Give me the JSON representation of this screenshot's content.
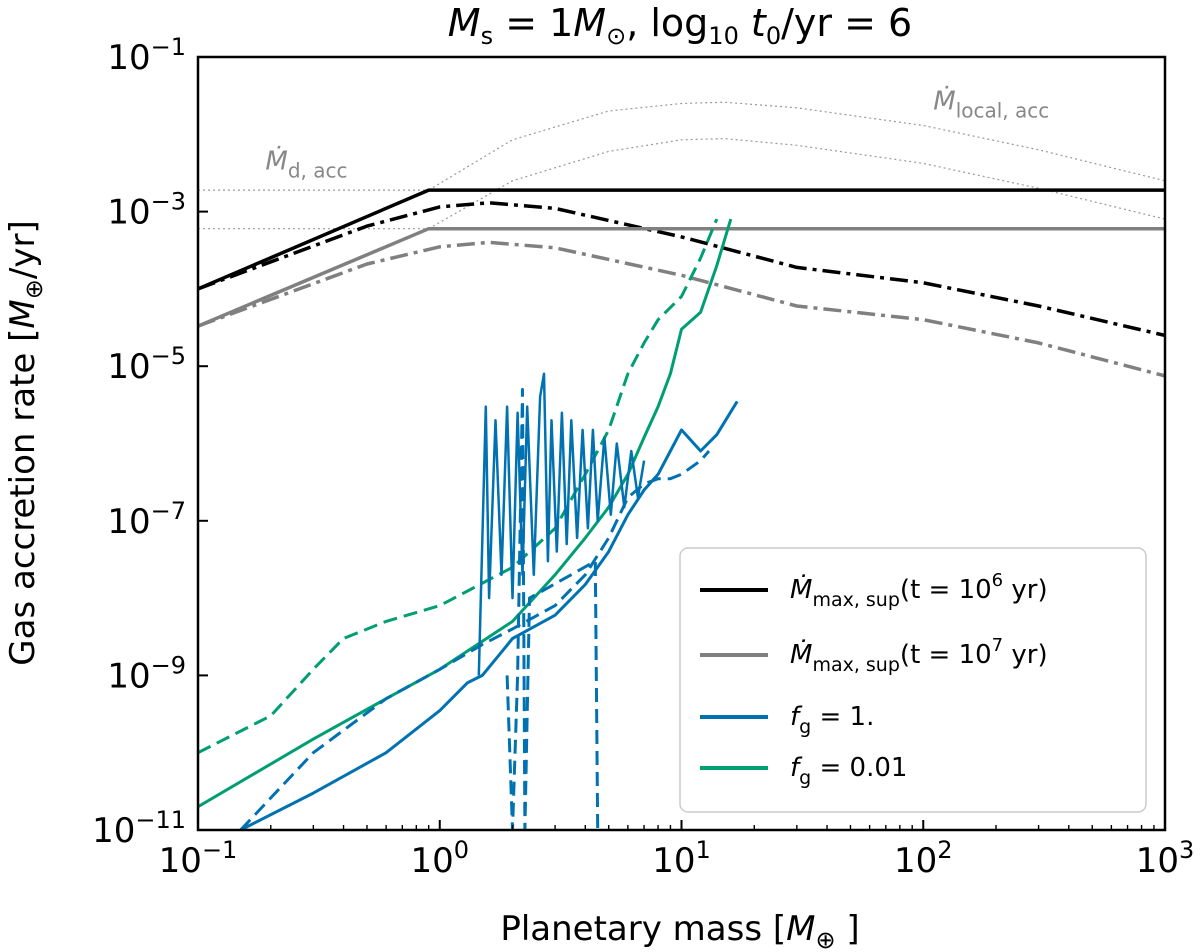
{
  "chart_data": {
    "type": "line",
    "title": "M_s = 1M_⊙, log₁₀ t₀/yr = 6",
    "title_parts": {
      "a": "M",
      "a_sub": "s",
      "b": " = 1",
      "c": "M",
      "c_sub": "⊙",
      "d": ", log",
      "d_sub": "10",
      "e": " t",
      "e_sub": "0",
      "f": "/yr = 6"
    },
    "xlabel": "Planetary mass [M⊕]",
    "xlabel_parts": {
      "pre": "Planetary mass [",
      "m": "M",
      "m_sub": "⊕",
      "post": " ]"
    },
    "ylabel": "Gas accretion rate [M⊕/yr]",
    "ylabel_parts": {
      "pre": "Gas accretion rate [",
      "m": "M",
      "m_sub": "⊕",
      "post": "/yr]"
    },
    "xscale": "log",
    "yscale": "log",
    "xlim": [
      0.1,
      1000
    ],
    "ylim": [
      1e-11,
      0.1
    ],
    "x_ticks": [
      {
        "value": 0.1,
        "base": "10",
        "exp": "−1"
      },
      {
        "value": 1,
        "base": "10",
        "exp": "0"
      },
      {
        "value": 10,
        "base": "10",
        "exp": "1"
      },
      {
        "value": 100,
        "base": "10",
        "exp": "2"
      },
      {
        "value": 1000,
        "base": "10",
        "exp": "3"
      }
    ],
    "y_ticks": [
      {
        "value": 1e-11,
        "base": "10",
        "exp": "−11"
      },
      {
        "value": 1e-09,
        "base": "10",
        "exp": "−9"
      },
      {
        "value": 1e-07,
        "base": "10",
        "exp": "−7"
      },
      {
        "value": 1e-05,
        "base": "10",
        "exp": "−5"
      },
      {
        "value": 0.001,
        "base": "10",
        "exp": "−3"
      },
      {
        "value": 0.1,
        "base": "10",
        "exp": "−1"
      }
    ],
    "grid": false,
    "legend_position": "bottom-right",
    "legend": [
      {
        "main": "Ṁ",
        "sub": "max, sup",
        "rest": "(t = 10",
        "sup": "6",
        "tail": " yr)",
        "color": "#000000",
        "style": "solid"
      },
      {
        "main": "Ṁ",
        "sub": "max, sup",
        "rest": "(t = 10",
        "sup": "7",
        "tail": " yr)",
        "color": "#808080",
        "style": "solid"
      },
      {
        "main": "f",
        "sub": "g",
        "rest": " = 1.",
        "sup": "",
        "tail": "",
        "color": "#0072B2",
        "style": "solid"
      },
      {
        "main": "f",
        "sub": "g",
        "rest": " = 0.01",
        "sup": "",
        "tail": "",
        "color": "#009E73",
        "style": "solid"
      }
    ],
    "annotations": [
      {
        "main": "Ṁ",
        "sub": "d, acc",
        "x": 0.19,
        "y": 0.0035
      },
      {
        "main": "Ṁ",
        "sub": "local, acc",
        "x": 110,
        "y": 0.021
      }
    ],
    "colors": {
      "black": "#000000",
      "gray": "#808080",
      "blue": "#0072B2",
      "green": "#009E73",
      "dotted": "#999999"
    },
    "series": [
      {
        "id": "mdot-d-acc-1e6",
        "color": "#999999",
        "style": "dotted",
        "width": 1.2,
        "points": [
          [
            0.1,
            0.0019
          ],
          [
            1000,
            0.0019
          ]
        ]
      },
      {
        "id": "mdot-d-acc-1e7",
        "color": "#999999",
        "style": "dotted",
        "width": 1.2,
        "points": [
          [
            0.1,
            0.0006
          ],
          [
            1000,
            0.0006
          ]
        ]
      },
      {
        "id": "mdot-local-acc-1e6",
        "color": "#999999",
        "style": "dotted",
        "width": 1.2,
        "points": [
          [
            0.9,
            0.0019
          ],
          [
            2,
            0.0085
          ],
          [
            5,
            0.02
          ],
          [
            10,
            0.025
          ],
          [
            15,
            0.026
          ],
          [
            30,
            0.022
          ],
          [
            100,
            0.013
          ],
          [
            300,
            0.0063
          ],
          [
            1000,
            0.0025
          ]
        ]
      },
      {
        "id": "mdot-local-acc-1e7",
        "color": "#999999",
        "style": "dotted",
        "width": 1.2,
        "points": [
          [
            0.9,
            0.0006
          ],
          [
            2,
            0.0025
          ],
          [
            5,
            0.006
          ],
          [
            10,
            0.0085
          ],
          [
            15,
            0.0088
          ],
          [
            30,
            0.0072
          ],
          [
            100,
            0.0042
          ],
          [
            300,
            0.002
          ],
          [
            1000,
            0.0008
          ]
        ]
      },
      {
        "id": "mdot-max-sup-1e6",
        "color": "#000000",
        "style": "solid",
        "width": 3.5,
        "points": [
          [
            0.1,
            0.0001
          ],
          [
            0.9,
            0.0019
          ],
          [
            1000,
            0.0019
          ]
        ]
      },
      {
        "id": "mdot-max-sup-1e6-dashdot",
        "color": "#000000",
        "style": "dashdot",
        "width": 3.5,
        "points": [
          [
            0.1,
            0.0001
          ],
          [
            0.5,
            0.00065
          ],
          [
            1,
            0.00115
          ],
          [
            1.6,
            0.0013
          ],
          [
            3,
            0.0011
          ],
          [
            10,
            0.00047
          ],
          [
            30,
            0.00019
          ],
          [
            100,
            0.00012
          ],
          [
            300,
            6e-05
          ],
          [
            1000,
            2.5e-05
          ]
        ]
      },
      {
        "id": "mdot-max-sup-1e7",
        "color": "#808080",
        "style": "solid",
        "width": 3.5,
        "points": [
          [
            0.1,
            3.3e-05
          ],
          [
            0.9,
            0.0006
          ],
          [
            1000,
            0.0006
          ]
        ]
      },
      {
        "id": "mdot-max-sup-1e7-dashdot",
        "color": "#808080",
        "style": "dashdot",
        "width": 3.5,
        "points": [
          [
            0.1,
            3.3e-05
          ],
          [
            0.5,
            0.00021
          ],
          [
            1,
            0.00035
          ],
          [
            1.6,
            0.0004
          ],
          [
            3,
            0.00034
          ],
          [
            10,
            0.00015
          ],
          [
            30,
            6e-05
          ],
          [
            100,
            4e-05
          ],
          [
            300,
            2e-05
          ],
          [
            1000,
            7.5e-06
          ]
        ]
      },
      {
        "id": "fg-0.01-solid",
        "color": "#009E73",
        "style": "solid",
        "width": 3,
        "points": [
          [
            0.1,
            2e-11
          ],
          [
            0.3,
            1.5e-10
          ],
          [
            0.6,
            5e-10
          ],
          [
            1,
            1.2e-09
          ],
          [
            2,
            5e-09
          ],
          [
            3,
            2e-08
          ],
          [
            4,
            6e-08
          ],
          [
            5,
            1.5e-07
          ],
          [
            6,
            4e-07
          ],
          [
            7,
            1.2e-06
          ],
          [
            8,
            3e-06
          ],
          [
            9,
            8e-06
          ],
          [
            10,
            3e-05
          ],
          [
            12,
            5e-05
          ],
          [
            14,
            0.0002
          ],
          [
            16,
            0.0008
          ]
        ]
      },
      {
        "id": "fg-0.01-dashed",
        "color": "#009E73",
        "style": "dashed",
        "width": 3,
        "points": [
          [
            0.1,
            1e-10
          ],
          [
            0.2,
            3e-10
          ],
          [
            0.3,
            1.2e-09
          ],
          [
            0.4,
            3e-09
          ],
          [
            0.6,
            5e-09
          ],
          [
            1,
            8e-09
          ],
          [
            2,
            2.5e-08
          ],
          [
            3,
            8e-08
          ],
          [
            4,
            4e-07
          ],
          [
            5,
            1.5e-06
          ],
          [
            6,
            8e-06
          ],
          [
            7,
            2e-05
          ],
          [
            8,
            4e-05
          ],
          [
            10,
            8e-05
          ],
          [
            12,
            0.00025
          ],
          [
            14,
            0.0008
          ]
        ]
      },
      {
        "id": "fg-1-solid",
        "color": "#0072B2",
        "style": "solid",
        "width": 3,
        "points": [
          [
            0.15,
            1e-11
          ],
          [
            0.3,
            3e-11
          ],
          [
            0.6,
            1e-10
          ],
          [
            1,
            3.5e-10
          ],
          [
            1.3,
            8e-10
          ],
          [
            1.5,
            1e-09
          ],
          [
            1.8,
            2e-09
          ],
          [
            2,
            3e-09
          ],
          [
            3,
            6e-09
          ],
          [
            4,
            1.5e-08
          ],
          [
            5,
            4e-08
          ],
          [
            6,
            1.2e-07
          ],
          [
            7,
            2.5e-07
          ],
          [
            8,
            4e-07
          ],
          [
            9,
            8e-07
          ],
          [
            10,
            1.5e-06
          ],
          [
            12,
            8e-07
          ],
          [
            14,
            1.3e-06
          ],
          [
            17,
            3.5e-06
          ]
        ]
      },
      {
        "id": "fg-1-dashed",
        "color": "#0072B2",
        "style": "dashed",
        "width": 3,
        "points": [
          [
            0.15,
            1e-11
          ],
          [
            0.3,
            1e-10
          ],
          [
            0.6,
            5e-10
          ],
          [
            1,
            1.2e-09
          ],
          [
            1.5,
            2.5e-09
          ],
          [
            2,
            4e-09
          ],
          [
            3,
            8e-09
          ],
          [
            4,
            2e-08
          ],
          [
            5,
            6e-08
          ],
          [
            6,
            2e-07
          ],
          [
            7,
            3e-07
          ],
          [
            8,
            3.5e-07
          ],
          [
            9,
            3.5e-07
          ],
          [
            10,
            4e-07
          ],
          [
            12,
            6e-07
          ],
          [
            13,
            8e-07
          ]
        ]
      },
      {
        "id": "fg-1-oscillation",
        "color": "#0072B2",
        "style": "solid",
        "width": 2.5,
        "points": [
          [
            1.45,
            1e-09
          ],
          [
            1.55,
            3e-06
          ],
          [
            1.6,
            1e-08
          ],
          [
            1.7,
            2e-06
          ],
          [
            1.8,
            2e-08
          ],
          [
            1.9,
            3e-06
          ],
          [
            2,
            1e-08
          ],
          [
            2.1,
            2.5e-06
          ],
          [
            2.2,
            2e-08
          ],
          [
            2.3,
            3e-06
          ],
          [
            2.45,
            2e-08
          ],
          [
            2.6,
            4e-06
          ],
          [
            2.7,
            8e-06
          ],
          [
            2.8,
            3e-08
          ],
          [
            2.9,
            2e-06
          ],
          [
            3.05,
            4e-08
          ],
          [
            3.2,
            2.5e-06
          ],
          [
            3.35,
            5e-08
          ],
          [
            3.5,
            2e-06
          ],
          [
            3.7,
            6e-08
          ],
          [
            3.9,
            1.5e-06
          ],
          [
            4.1,
            8e-08
          ],
          [
            4.3,
            1.5e-06
          ],
          [
            4.5,
            1e-07
          ],
          [
            4.8,
            1.2e-06
          ],
          [
            5.1,
            1.2e-07
          ],
          [
            5.4,
            1e-06
          ],
          [
            5.8,
            1.5e-07
          ],
          [
            6.2,
            8e-07
          ],
          [
            6.6,
            2e-07
          ],
          [
            7,
            6e-07
          ]
        ]
      },
      {
        "id": "fg-1-dashed-dips",
        "color": "#0072B2",
        "style": "dashed",
        "width": 3,
        "points": [
          [
            1.9,
            1e-09
          ],
          [
            2.0,
            1e-11
          ],
          [
            2.1,
            1e-09
          ],
          [
            2.2,
            5e-06
          ],
          [
            2.25,
            1e-11
          ],
          [
            2.35,
            1e-08
          ],
          [
            4.4,
            3e-08
          ],
          [
            4.5,
            1e-11
          ]
        ]
      }
    ]
  }
}
